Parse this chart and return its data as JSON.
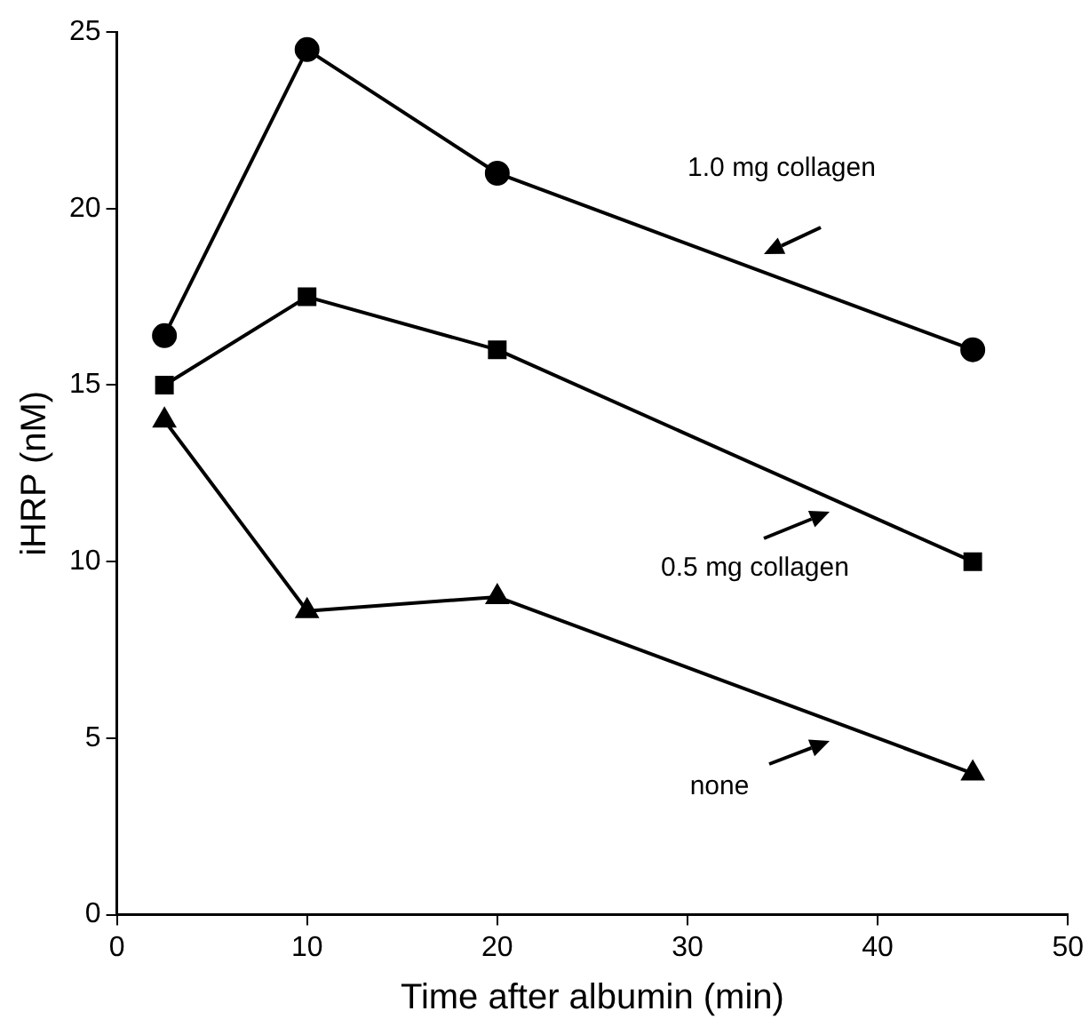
{
  "chart_data": {
    "type": "line",
    "xlabel": "Time after albumin (min)",
    "ylabel": "iHRP (nM)",
    "x": [
      2.5,
      10,
      20,
      45
    ],
    "series": [
      {
        "color": "#000000",
        "marker": "circle",
        "values": [
          16.4,
          24.5,
          21,
          16
        ]
      },
      {
        "color": "#000000",
        "marker": "square",
        "values": [
          15,
          17.5,
          16,
          10
        ]
      },
      {
        "color": "#000000",
        "marker": "triangle",
        "values": [
          14,
          8.6,
          9,
          4
        ]
      }
    ],
    "annotations": [
      "1.0 mg collagen",
      "0.5 mg collagen",
      "none"
    ],
    "xlim": [
      0,
      50
    ],
    "xticks": [
      0,
      10,
      20,
      30,
      40,
      50
    ],
    "ylim": [
      0,
      25
    ],
    "yticks": [
      0,
      5,
      10,
      15,
      20,
      25
    ],
    "grid": false,
    "legend": false,
    "line_style": "solid"
  }
}
